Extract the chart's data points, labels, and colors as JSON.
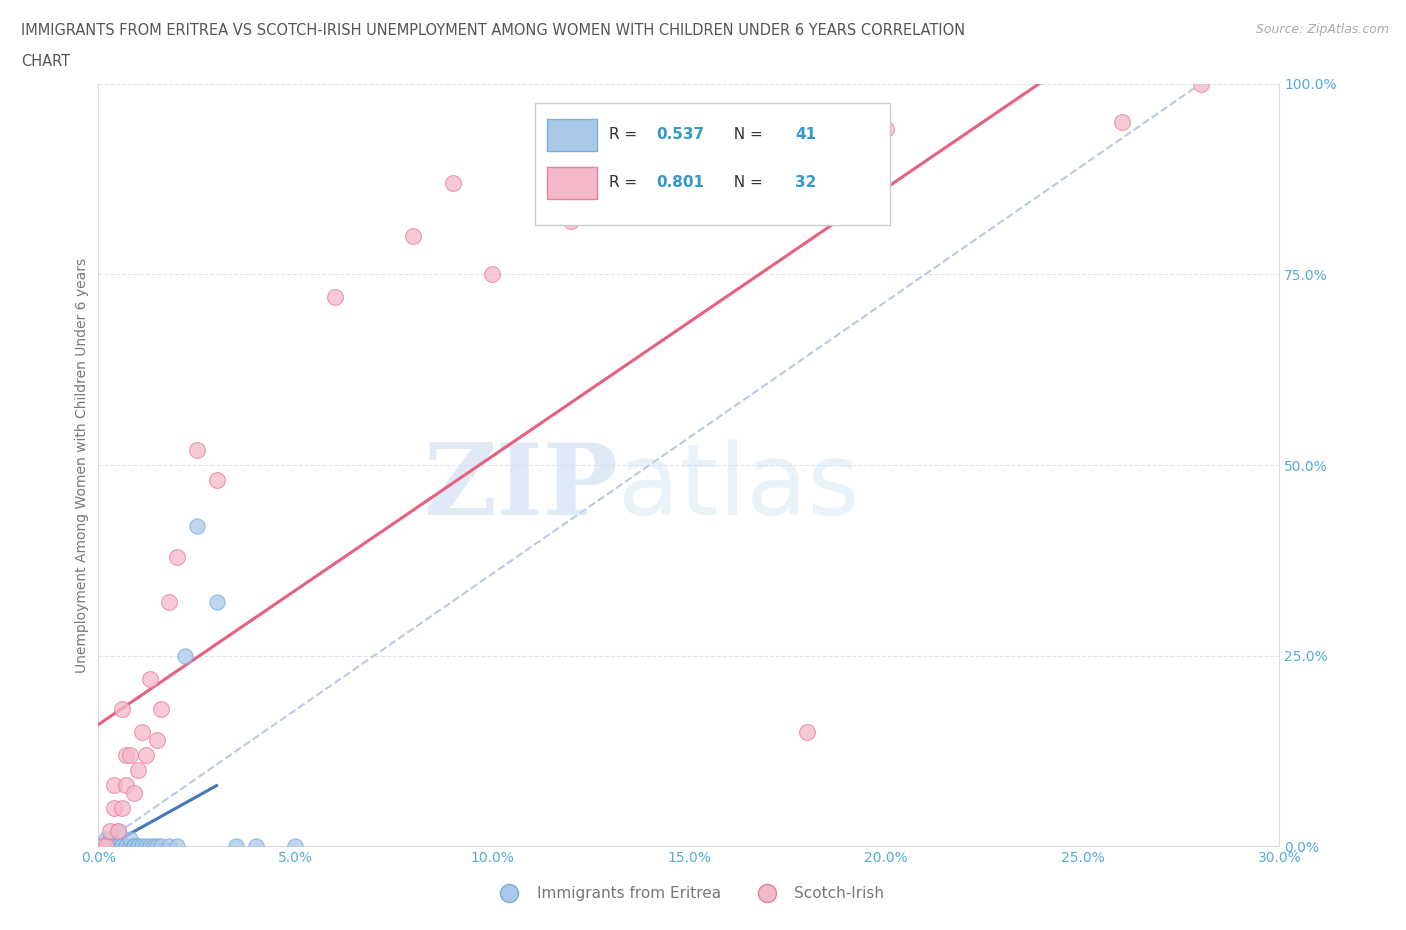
{
  "title_line1": "IMMIGRANTS FROM ERITREA VS SCOTCH-IRISH UNEMPLOYMENT AMONG WOMEN WITH CHILDREN UNDER 6 YEARS CORRELATION",
  "title_line2": "CHART",
  "source_text": "Source: ZipAtlas.com",
  "ylabel": "Unemployment Among Women with Children Under 6 years",
  "xlim": [
    0,
    0.3
  ],
  "ylim": [
    0,
    1.0
  ],
  "xtick_labels": [
    "0.0%",
    "5.0%",
    "10.0%",
    "15.0%",
    "20.0%",
    "25.0%",
    "30.0%"
  ],
  "xtick_values": [
    0.0,
    0.05,
    0.1,
    0.15,
    0.2,
    0.25,
    0.3
  ],
  "ytick_labels": [
    "0.0%",
    "25.0%",
    "50.0%",
    "75.0%",
    "100.0%"
  ],
  "ytick_values": [
    0.0,
    0.25,
    0.5,
    0.75,
    1.0
  ],
  "blue_color": "#aac8e8",
  "blue_edge": "#7aaed6",
  "pink_color": "#f4b8c8",
  "pink_edge": "#e8809a",
  "blue_reg_color": "#4477bb",
  "blue_dash_color": "#aabbdd",
  "pink_reg_color": "#e86080",
  "legend_label1": "Immigrants from Eritrea",
  "legend_label2": "Scotch-Irish",
  "watermark_zip": "ZIP",
  "watermark_atlas": "atlas",
  "blue_scatter_x": [
    0.001,
    0.001,
    0.002,
    0.002,
    0.002,
    0.002,
    0.003,
    0.003,
    0.003,
    0.003,
    0.004,
    0.004,
    0.004,
    0.005,
    0.005,
    0.005,
    0.006,
    0.006,
    0.006,
    0.007,
    0.007,
    0.008,
    0.008,
    0.009,
    0.009,
    0.01,
    0.01,
    0.011,
    0.012,
    0.013,
    0.014,
    0.015,
    0.016,
    0.018,
    0.02,
    0.022,
    0.025,
    0.03,
    0.035,
    0.04,
    0.05
  ],
  "blue_scatter_y": [
    0.0,
    0.0,
    0.0,
    0.0,
    0.0,
    0.01,
    0.0,
    0.0,
    0.0,
    0.01,
    0.0,
    0.0,
    0.0,
    0.0,
    0.0,
    0.02,
    0.0,
    0.0,
    0.0,
    0.0,
    0.0,
    0.0,
    0.01,
    0.0,
    0.0,
    0.0,
    0.0,
    0.0,
    0.0,
    0.0,
    0.0,
    0.0,
    0.0,
    0.0,
    0.0,
    0.25,
    0.42,
    0.32,
    0.0,
    0.0,
    0.0
  ],
  "pink_scatter_x": [
    0.001,
    0.002,
    0.003,
    0.004,
    0.004,
    0.005,
    0.006,
    0.006,
    0.007,
    0.007,
    0.008,
    0.009,
    0.01,
    0.011,
    0.012,
    0.013,
    0.015,
    0.016,
    0.018,
    0.02,
    0.025,
    0.03,
    0.06,
    0.08,
    0.09,
    0.1,
    0.12,
    0.15,
    0.18,
    0.2,
    0.26,
    0.28
  ],
  "pink_scatter_y": [
    0.0,
    0.0,
    0.02,
    0.05,
    0.08,
    0.02,
    0.05,
    0.18,
    0.08,
    0.12,
    0.12,
    0.07,
    0.1,
    0.15,
    0.12,
    0.22,
    0.14,
    0.18,
    0.32,
    0.38,
    0.52,
    0.48,
    0.72,
    0.8,
    0.87,
    0.75,
    0.82,
    0.87,
    0.15,
    0.94,
    0.95,
    1.0
  ],
  "title_color": "#555555",
  "axis_label_color": "#777777",
  "tick_label_color": "#55aadd",
  "grid_color": "#e0e4ee",
  "background_color": "#ffffff"
}
